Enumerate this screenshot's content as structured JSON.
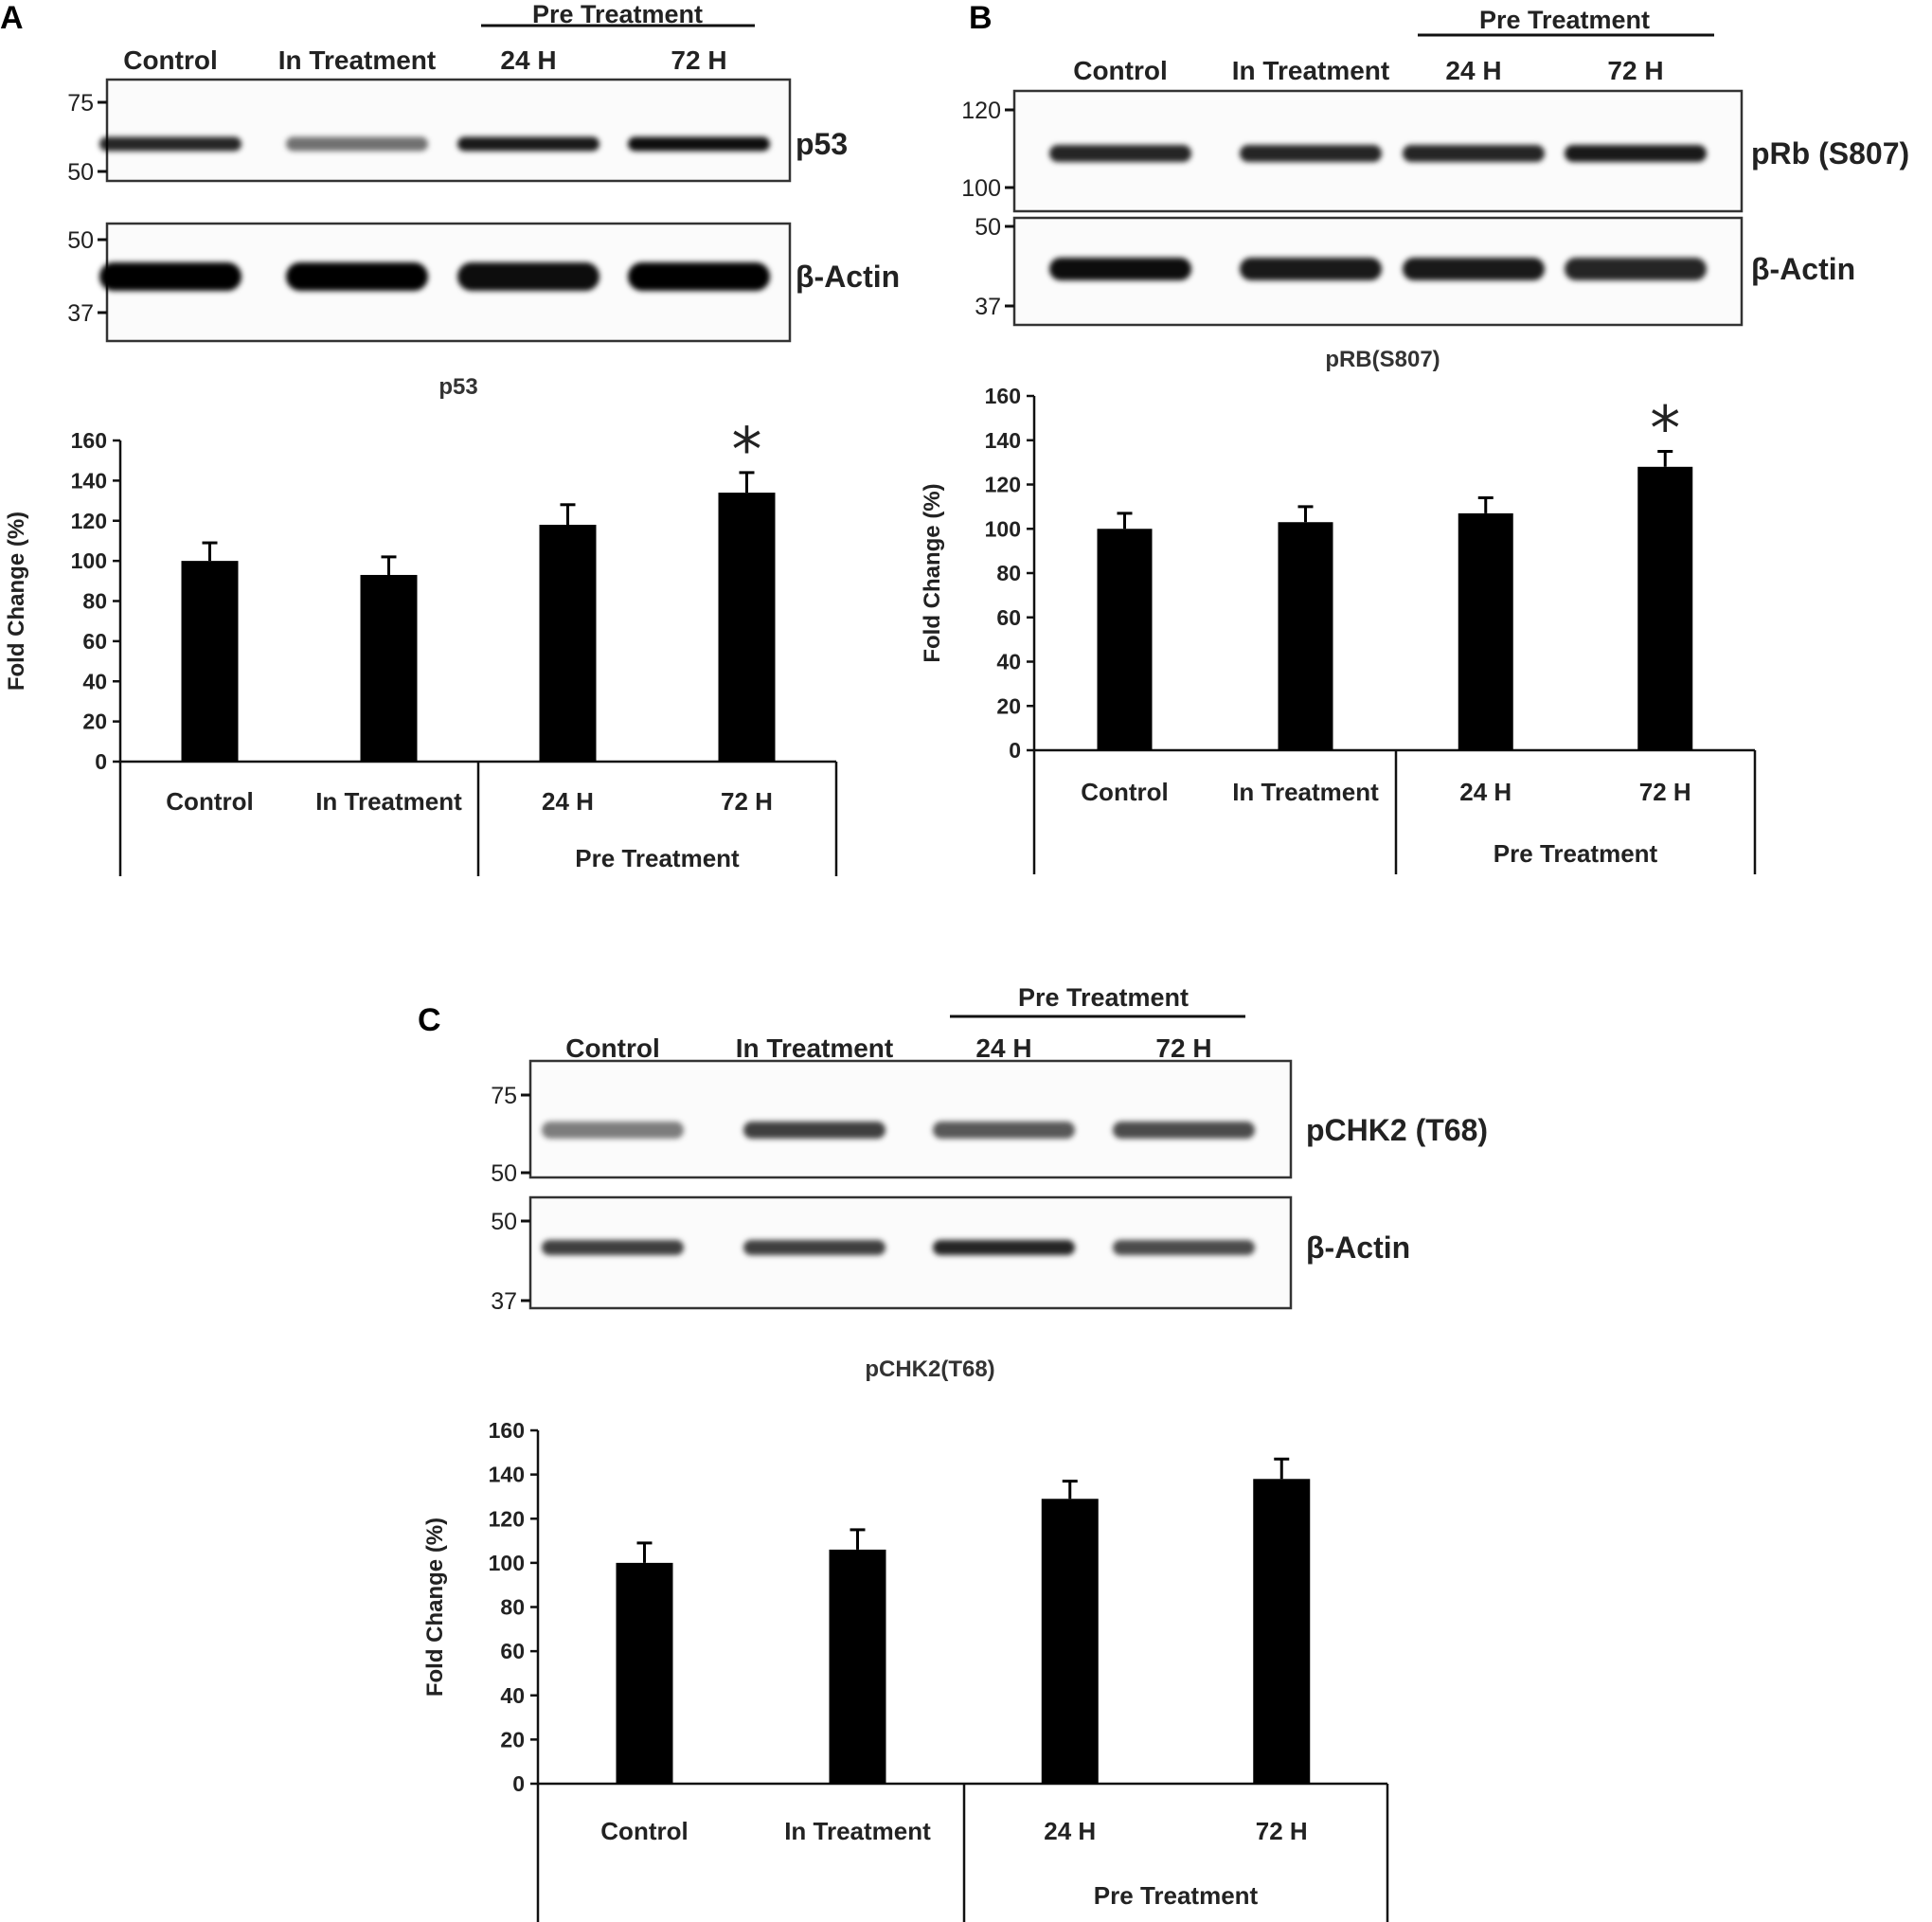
{
  "figure": {
    "panels": [
      {
        "letter": "A",
        "blot": {
          "lanes": [
            "Control",
            "In Treatment",
            "24 H",
            "72 H"
          ],
          "pre_treatment_label": "Pre Treatment",
          "strips": [
            {
              "protein": "p53",
              "markers": [
                "75",
                "50"
              ],
              "band_intensity": [
                0.85,
                0.55,
                0.9,
                0.95
              ]
            },
            {
              "protein": "β-Actin",
              "markers": [
                "50",
                "37"
              ],
              "band_intensity": [
                1.0,
                1.0,
                0.95,
                1.0
              ]
            }
          ]
        }
      },
      {
        "letter": "B",
        "blot": {
          "lanes": [
            "Control",
            "In Treatment",
            "24 H",
            "72 H"
          ],
          "pre_treatment_label": "Pre Treatment",
          "strips": [
            {
              "protein": "pRb (S807)",
              "markers": [
                "120",
                "100"
              ],
              "band_intensity": [
                0.85,
                0.85,
                0.85,
                0.9
              ]
            },
            {
              "protein": "β-Actin",
              "markers": [
                "50",
                "37"
              ],
              "band_intensity": [
                0.95,
                0.9,
                0.9,
                0.85
              ]
            }
          ]
        }
      },
      {
        "letter": "C",
        "blot": {
          "lanes": [
            "Control",
            "In Treatment",
            "24 H",
            "72 H"
          ],
          "pre_treatment_label": "Pre Treatment",
          "strips": [
            {
              "protein": "pCHK2 (T68)",
              "markers": [
                "75",
                "50"
              ],
              "band_intensity": [
                0.5,
                0.75,
                0.65,
                0.7
              ]
            },
            {
              "protein": "β-Actin",
              "markers": [
                "50",
                "37"
              ],
              "band_intensity": [
                0.75,
                0.75,
                0.85,
                0.7
              ]
            }
          ]
        }
      }
    ]
  },
  "chart_data": [
    {
      "type": "bar",
      "title": "p53",
      "categories": [
        "Control",
        "In Treatment",
        "24 H",
        "72 H"
      ],
      "group_label": "Pre Treatment",
      "values": [
        100,
        93,
        118,
        134
      ],
      "errors": [
        9,
        9,
        10,
        10
      ],
      "significant": [
        false,
        false,
        false,
        true
      ],
      "significance_marker": "*",
      "ylabel": "Fold Change (%)",
      "ylim": [
        0,
        160
      ],
      "yticks": [
        0,
        20,
        40,
        60,
        80,
        100,
        120,
        140,
        160
      ],
      "color": "#000000"
    },
    {
      "type": "bar",
      "title": "pRB(S807)",
      "categories": [
        "Control",
        "In Treatment",
        "24 H",
        "72 H"
      ],
      "group_label": "Pre Treatment",
      "values": [
        100,
        103,
        107,
        128
      ],
      "errors": [
        7,
        7,
        7,
        7
      ],
      "significant": [
        false,
        false,
        false,
        true
      ],
      "significance_marker": "*",
      "ylabel": "Fold Change (%)",
      "ylim": [
        0,
        160
      ],
      "yticks": [
        0,
        20,
        40,
        60,
        80,
        100,
        120,
        140,
        160
      ],
      "color": "#000000"
    },
    {
      "type": "bar",
      "title": "pCHK2(T68)",
      "categories": [
        "Control",
        "In Treatment",
        "24 H",
        "72 H"
      ],
      "group_label": "Pre Treatment",
      "values": [
        100,
        106,
        129,
        138
      ],
      "errors": [
        9,
        9,
        8,
        9
      ],
      "significant": [
        false,
        false,
        false,
        false
      ],
      "significance_marker": "*",
      "ylabel": "Fold Change (%)",
      "ylim": [
        0,
        160
      ],
      "yticks": [
        0,
        20,
        40,
        60,
        80,
        100,
        120,
        140,
        160
      ],
      "color": "#000000"
    }
  ]
}
